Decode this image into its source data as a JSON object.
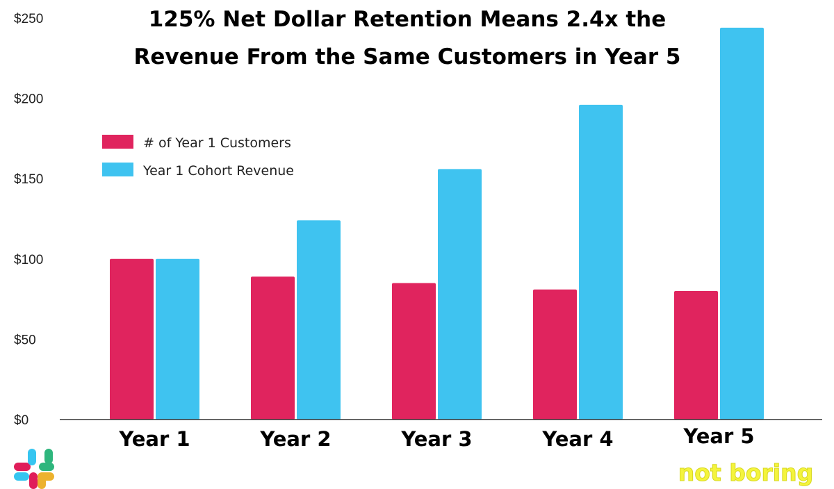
{
  "chart_data": {
    "type": "bar",
    "title_lines": [
      "125% Net Dollar Retention Means 2.4x the",
      "Revenue From the Same Customers in Year 5"
    ],
    "categories": [
      "Year 1",
      "Year 2",
      "Year 3",
      "Year 4",
      "Year 5"
    ],
    "series": [
      {
        "name": "# of Year 1 Customers",
        "color": "#e0245e",
        "values": [
          100,
          89,
          85,
          81,
          80
        ]
      },
      {
        "name": "Year 1 Cohort Revenue",
        "color": "#3fc3f0",
        "values": [
          100,
          124,
          156,
          196,
          244
        ]
      }
    ],
    "yticks": [
      "$0",
      "$50",
      "$100",
      "$150",
      "$200",
      "$250"
    ],
    "ylim": [
      0,
      250
    ],
    "grid": false,
    "legend_position": "top-left"
  },
  "branding": {
    "left_logo": "slack-logo",
    "right_logo_text": "not boring"
  }
}
